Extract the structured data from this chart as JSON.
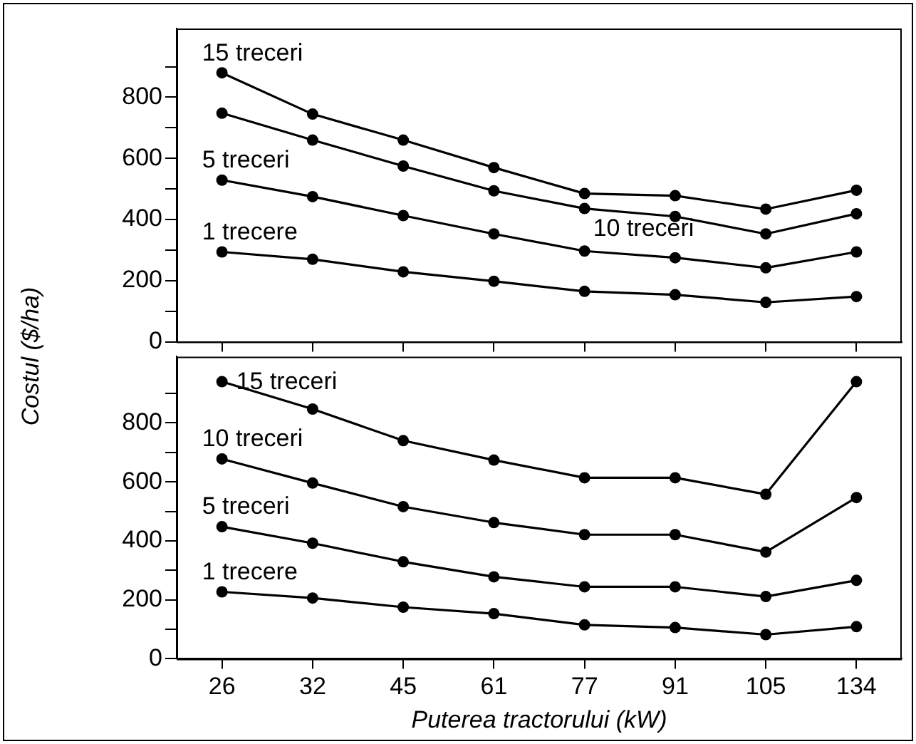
{
  "chart_data": [
    {
      "type": "line",
      "ylabel": "Costul ($/ha)",
      "categories": [
        "26",
        "32",
        "45",
        "61",
        "77",
        "91",
        "105",
        "134"
      ],
      "ylim": [
        0,
        1025
      ],
      "yticks": [
        0,
        {
          "value": 100,
          "label": null
        },
        200,
        {
          "value": 300,
          "label": null
        },
        400,
        {
          "value": 500,
          "label": null
        },
        600,
        {
          "value": 700,
          "label": null
        },
        800,
        {
          "value": 900,
          "label": null
        }
      ],
      "tick_labels": "y",
      "marker": "circle",
      "line_style": "solid",
      "series": [
        {
          "name": "15 treceri",
          "color": "#000000",
          "values": [
            880,
            745,
            660,
            570,
            485,
            478,
            434,
            496
          ]
        },
        {
          "name": "10 treceri",
          "color": "#000000",
          "values": [
            748,
            660,
            575,
            494,
            436,
            410,
            353,
            419
          ]
        },
        {
          "name": "5 treceri",
          "color": "#000000",
          "values": [
            529,
            475,
            413,
            353,
            297,
            275,
            242,
            294
          ]
        },
        {
          "name": "1 trecere",
          "color": "#000000",
          "values": [
            294,
            270,
            229,
            198,
            165,
            154,
            129,
            148
          ]
        }
      ]
    },
    {
      "type": "line",
      "xlabel": "Puterea tractorului (kW)",
      "categories": [
        "26",
        "32",
        "45",
        "61",
        "77",
        "91",
        "105",
        "134"
      ],
      "ylim": [
        0,
        1025
      ],
      "yticks": [
        0,
        {
          "value": 100,
          "label": null
        },
        200,
        {
          "value": 300,
          "label": null
        },
        400,
        {
          "value": 500,
          "label": null
        },
        600,
        {
          "value": 700,
          "label": null
        },
        800,
        {
          "value": 900,
          "label": null
        }
      ],
      "marker": "circle",
      "line_style": "solid",
      "series": [
        {
          "name": "15 treceri",
          "color": "#000000",
          "values": [
            940,
            847,
            740,
            674,
            614,
            614,
            558,
            940
          ]
        },
        {
          "name": "10 treceri",
          "color": "#000000",
          "values": [
            678,
            596,
            516,
            462,
            421,
            421,
            362,
            547
          ]
        },
        {
          "name": "5 treceri",
          "color": "#000000",
          "values": [
            448,
            392,
            329,
            278,
            244,
            244,
            211,
            266
          ]
        },
        {
          "name": "1 trecere",
          "color": "#000000",
          "values": [
            227,
            206,
            175,
            153,
            115,
            106,
            82,
            109
          ]
        }
      ]
    }
  ]
}
